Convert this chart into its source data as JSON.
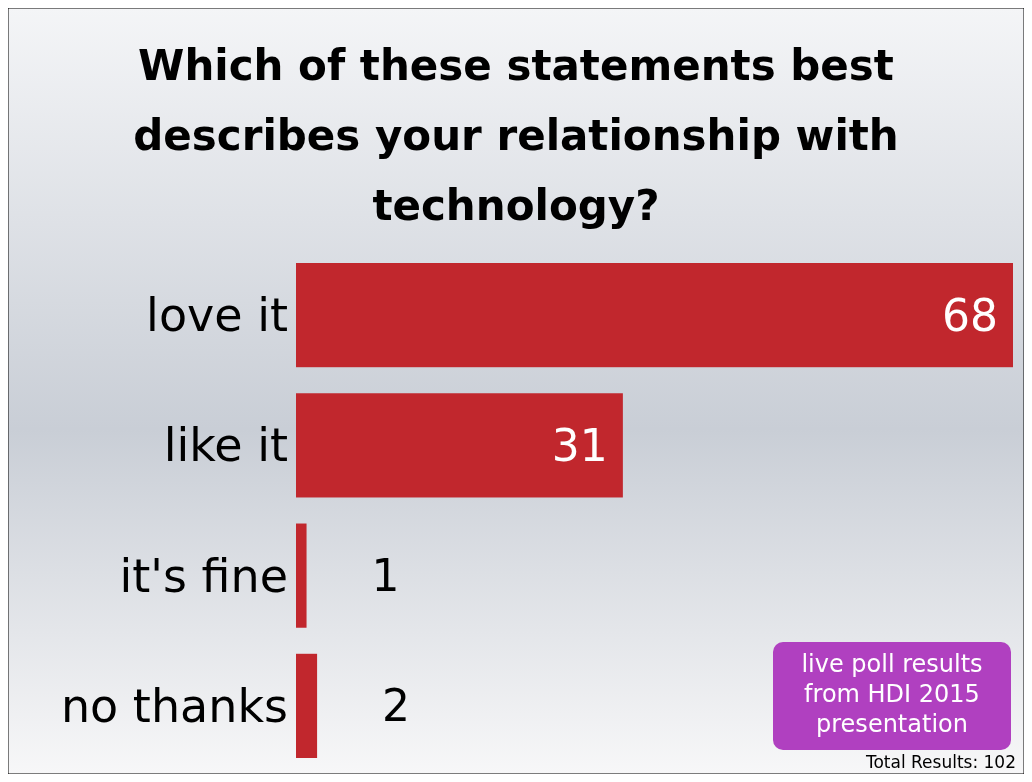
{
  "chart_data": {
    "type": "bar",
    "orientation": "horizontal",
    "title": "Which of these statements best describes your relationship with technology?",
    "categories": [
      "love it",
      "like it",
      "it's fine",
      "no thanks"
    ],
    "values": [
      68,
      31,
      1,
      2
    ],
    "color": "#c1272d",
    "data_labels": true,
    "annotations": [
      "live poll results from HDI 2015 presentation",
      "Total Results: 102"
    ]
  }
}
